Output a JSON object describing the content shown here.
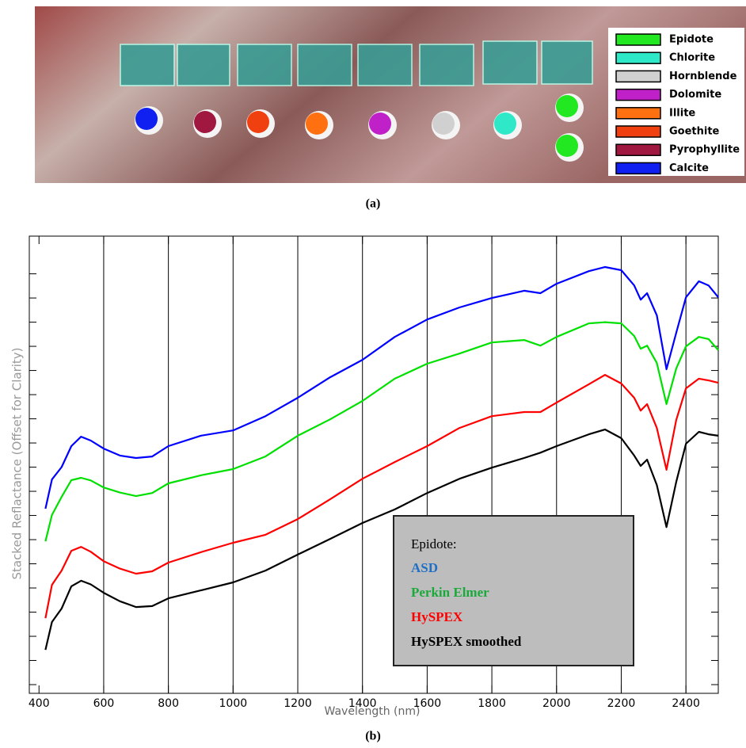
{
  "photo": {
    "caption": "(a)",
    "legend": [
      {
        "name": "Epidote",
        "color": "#22e822"
      },
      {
        "name": "Chlorite",
        "color": "#2ee8c8"
      },
      {
        "name": "Hornblende",
        "color": "#d0d0d0"
      },
      {
        "name": "Dolomite",
        "color": "#c020c8"
      },
      {
        "name": "Illite",
        "color": "#ff7010"
      },
      {
        "name": "Goethite",
        "color": "#f04010"
      },
      {
        "name": "Pyrophyllite",
        "color": "#a01840"
      },
      {
        "name": "Calcite",
        "color": "#1020f0"
      }
    ]
  },
  "chart_data": {
    "type": "line",
    "caption": "(b)",
    "x_label": "Wavelength (nm)",
    "y_label": "Stacked Reflactance (Offset for Clarity)",
    "legend_title": "Epidote:",
    "x": [
      420,
      440,
      470,
      500,
      530,
      560,
      600,
      650,
      700,
      750,
      800,
      900,
      1000,
      1100,
      1200,
      1300,
      1400,
      1500,
      1600,
      1700,
      1800,
      1900,
      1950,
      2000,
      2100,
      2150,
      2200,
      2240,
      2260,
      2280,
      2310,
      2340,
      2370,
      2400,
      2440,
      2470,
      2500
    ],
    "series": [
      {
        "name": "ASD",
        "color": "#0000ff",
        "label_color": "#1f6fc5",
        "values": [
          8.28,
          9.49,
          10.0,
          10.87,
          11.26,
          11.1,
          10.77,
          10.48,
          10.38,
          10.44,
          10.87,
          11.3,
          11.52,
          12.11,
          12.87,
          13.72,
          14.44,
          15.39,
          16.11,
          16.61,
          17.0,
          17.3,
          17.2,
          17.59,
          18.11,
          18.28,
          18.15,
          17.52,
          16.93,
          17.2,
          16.28,
          14.05,
          15.56,
          17.03,
          17.69,
          17.52,
          17.03
        ]
      },
      {
        "name": "Perkin Elmer",
        "color": "#00e000",
        "label_color": "#1aaa3c",
        "values": [
          6.93,
          8.02,
          8.77,
          9.46,
          9.56,
          9.45,
          9.16,
          8.95,
          8.8,
          8.93,
          9.33,
          9.66,
          9.92,
          10.44,
          11.3,
          11.98,
          12.74,
          13.66,
          14.28,
          14.7,
          15.16,
          15.26,
          15.03,
          15.39,
          15.95,
          16.0,
          15.95,
          15.43,
          14.9,
          15.03,
          14.31,
          12.61,
          14.08,
          15.0,
          15.39,
          15.3,
          14.84
        ]
      },
      {
        "name": "HySPEX",
        "color": "#ff0000",
        "label_color": "#ff0000",
        "values": [
          3.75,
          5.13,
          5.72,
          6.54,
          6.7,
          6.5,
          6.11,
          5.8,
          5.59,
          5.69,
          6.05,
          6.48,
          6.87,
          7.2,
          7.85,
          8.67,
          9.52,
          10.21,
          10.87,
          11.62,
          12.11,
          12.28,
          12.28,
          12.67,
          13.43,
          13.82,
          13.46,
          12.87,
          12.34,
          12.61,
          11.62,
          9.89,
          11.95,
          13.26,
          13.66,
          13.59,
          13.49
        ]
      },
      {
        "name": "HySPEX smoothed",
        "color": "#000000",
        "label_color": "#000000",
        "values": [
          2.44,
          3.59,
          4.15,
          5.07,
          5.3,
          5.15,
          4.8,
          4.45,
          4.21,
          4.25,
          4.57,
          4.9,
          5.23,
          5.72,
          6.38,
          7.03,
          7.69,
          8.25,
          8.93,
          9.52,
          9.98,
          10.38,
          10.6,
          10.87,
          11.36,
          11.56,
          11.2,
          10.48,
          10.05,
          10.31,
          9.26,
          7.52,
          9.39,
          10.97,
          11.46,
          11.36,
          11.3
        ]
      }
    ],
    "xlim": [
      370,
      2500
    ],
    "xticks": [
      400,
      600,
      800,
      1000,
      1200,
      1400,
      1600,
      1800,
      2000,
      2200,
      2400
    ],
    "ylim": [
      0.64,
      19.56
    ],
    "yticks": [
      1,
      2,
      3,
      4,
      5,
      6,
      7,
      8,
      9,
      10,
      11,
      12,
      13,
      14,
      15,
      16,
      17,
      18
    ],
    "grid": true
  }
}
